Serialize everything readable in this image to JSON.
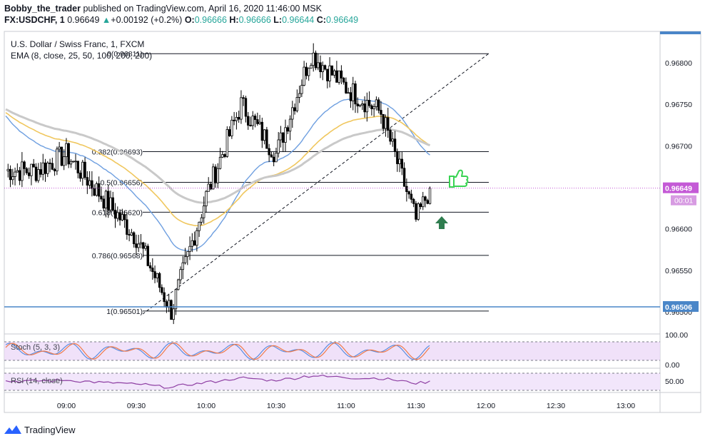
{
  "header": {
    "author": "Bobby_the_trader",
    "published": "published on TradingView.com, April 16, 2020 11:46:00 MSK",
    "symbol": "FX:USDCHF, 1",
    "last": "0.96649",
    "arrow": "▲",
    "change": "+0.00192 (+0.2%)",
    "o_label": "O:",
    "o_value": "0.96666",
    "h_label": "H:",
    "h_value": "0.96666",
    "l_label": "L:",
    "l_value": "0.96644",
    "c_label": "C:",
    "c_value": "0.96649"
  },
  "legend": {
    "instrument": "U.S. Dollar / Swiss Franc, 1, FXCM",
    "ema": "EMA (8, close, 25, 50, 100, 200, 200)"
  },
  "price_axis": {
    "ticks": [
      "0.96800",
      "0.96750",
      "0.96700",
      "0.96650",
      "0.96600",
      "0.96550",
      "0.96500"
    ],
    "current_price_label": "0.96649",
    "countdown_label": "00:01",
    "horizontal_line_label": "0.96506"
  },
  "time_axis": {
    "ticks": [
      "09:00",
      "09:30",
      "10:00",
      "10:30",
      "11:00",
      "11:30",
      "12:00",
      "12:30",
      "13:00"
    ]
  },
  "fib_levels": [
    {
      "label": "0(0.96811)",
      "value": 0.96811
    },
    {
      "label": "0.382(0.96693)",
      "value": 0.96693
    },
    {
      "label": "0.5(0.96656)",
      "value": 0.96656
    },
    {
      "label": "0.618(0.96620)",
      "value": 0.9662
    },
    {
      "label": "0.786(0.96568)",
      "value": 0.96568
    },
    {
      "label": "1(0.96501)",
      "value": 0.96501
    }
  ],
  "stoch": {
    "label": "Stoch (5, 3, 3)",
    "ticks": [
      "100.00",
      "0.00"
    ]
  },
  "rsi": {
    "label": "RSI (14, close)",
    "ticks": [
      "50.00"
    ]
  },
  "footer": {
    "brand": "TradingView"
  },
  "colors": {
    "up": "#ffffff",
    "down": "#000000",
    "candle_border": "#000000",
    "ema_blue": "#6e9fe0",
    "ema_gold": "#f0c75e",
    "ema_grey": "#c9c9c9",
    "current_price": "#c45ad6",
    "hline": "#4a86c8",
    "arrow_green": "#2f7d4f",
    "thumb_green": "#39d353",
    "stoch_band": "#ecd9f7",
    "stoch_k": "#5b8de0",
    "stoch_d": "#ef7a4a",
    "rsi_band": "#f2e6fb",
    "rsi_line": "#8e3fa3"
  },
  "chart_data": {
    "type": "candlestick",
    "symbol": "FX:USDCHF",
    "interval": "1",
    "x_axis": [
      "09:00",
      "09:30",
      "10:00",
      "10:30",
      "11:00",
      "11:30",
      "12:00",
      "12:30",
      "13:00"
    ],
    "ylim": [
      0.9647,
      0.9684
    ],
    "last_close": 0.96649,
    "key_points": [
      {
        "time": "08:47",
        "price": 0.9667
      },
      {
        "time": "09:00",
        "price": 0.9669
      },
      {
        "time": "09:15",
        "price": 0.9664
      },
      {
        "time": "09:30",
        "price": 0.9659
      },
      {
        "time": "09:45",
        "price": 0.96501
      },
      {
        "time": "10:00",
        "price": 0.9664
      },
      {
        "time": "10:15",
        "price": 0.9675
      },
      {
        "time": "10:30",
        "price": 0.9669
      },
      {
        "time": "10:45",
        "price": 0.96811
      },
      {
        "time": "11:00",
        "price": 0.9677
      },
      {
        "time": "11:15",
        "price": 0.9674
      },
      {
        "time": "11:30",
        "price": 0.9661
      },
      {
        "time": "11:36",
        "price": 0.96649
      }
    ],
    "series": [
      {
        "name": "EMA 100",
        "values": [
          0.96735,
          0.96715,
          0.9666,
          0.96655,
          0.9667,
          0.967,
          0.9669
        ]
      },
      {
        "name": "EMA 200",
        "values": [
          0.9673,
          0.96725,
          0.9669,
          0.9666,
          0.96672,
          0.96702,
          0.96688
        ]
      }
    ]
  }
}
